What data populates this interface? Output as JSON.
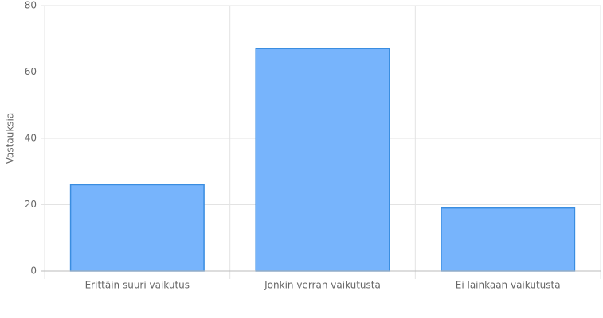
{
  "chart_data": {
    "type": "bar",
    "y_label": "Vastauksia",
    "categories": [
      "Erittäin suuri vaikutus",
      "Jonkin verran vaikutusta",
      "Ei lainkaan vaikutusta"
    ],
    "values": [
      26,
      67,
      19
    ],
    "color": "#77b4fc",
    "border_color": "#3a8de0",
    "ylim": [
      0,
      80
    ],
    "yticks": [
      0,
      20,
      40,
      60,
      80
    ],
    "grid": true
  }
}
